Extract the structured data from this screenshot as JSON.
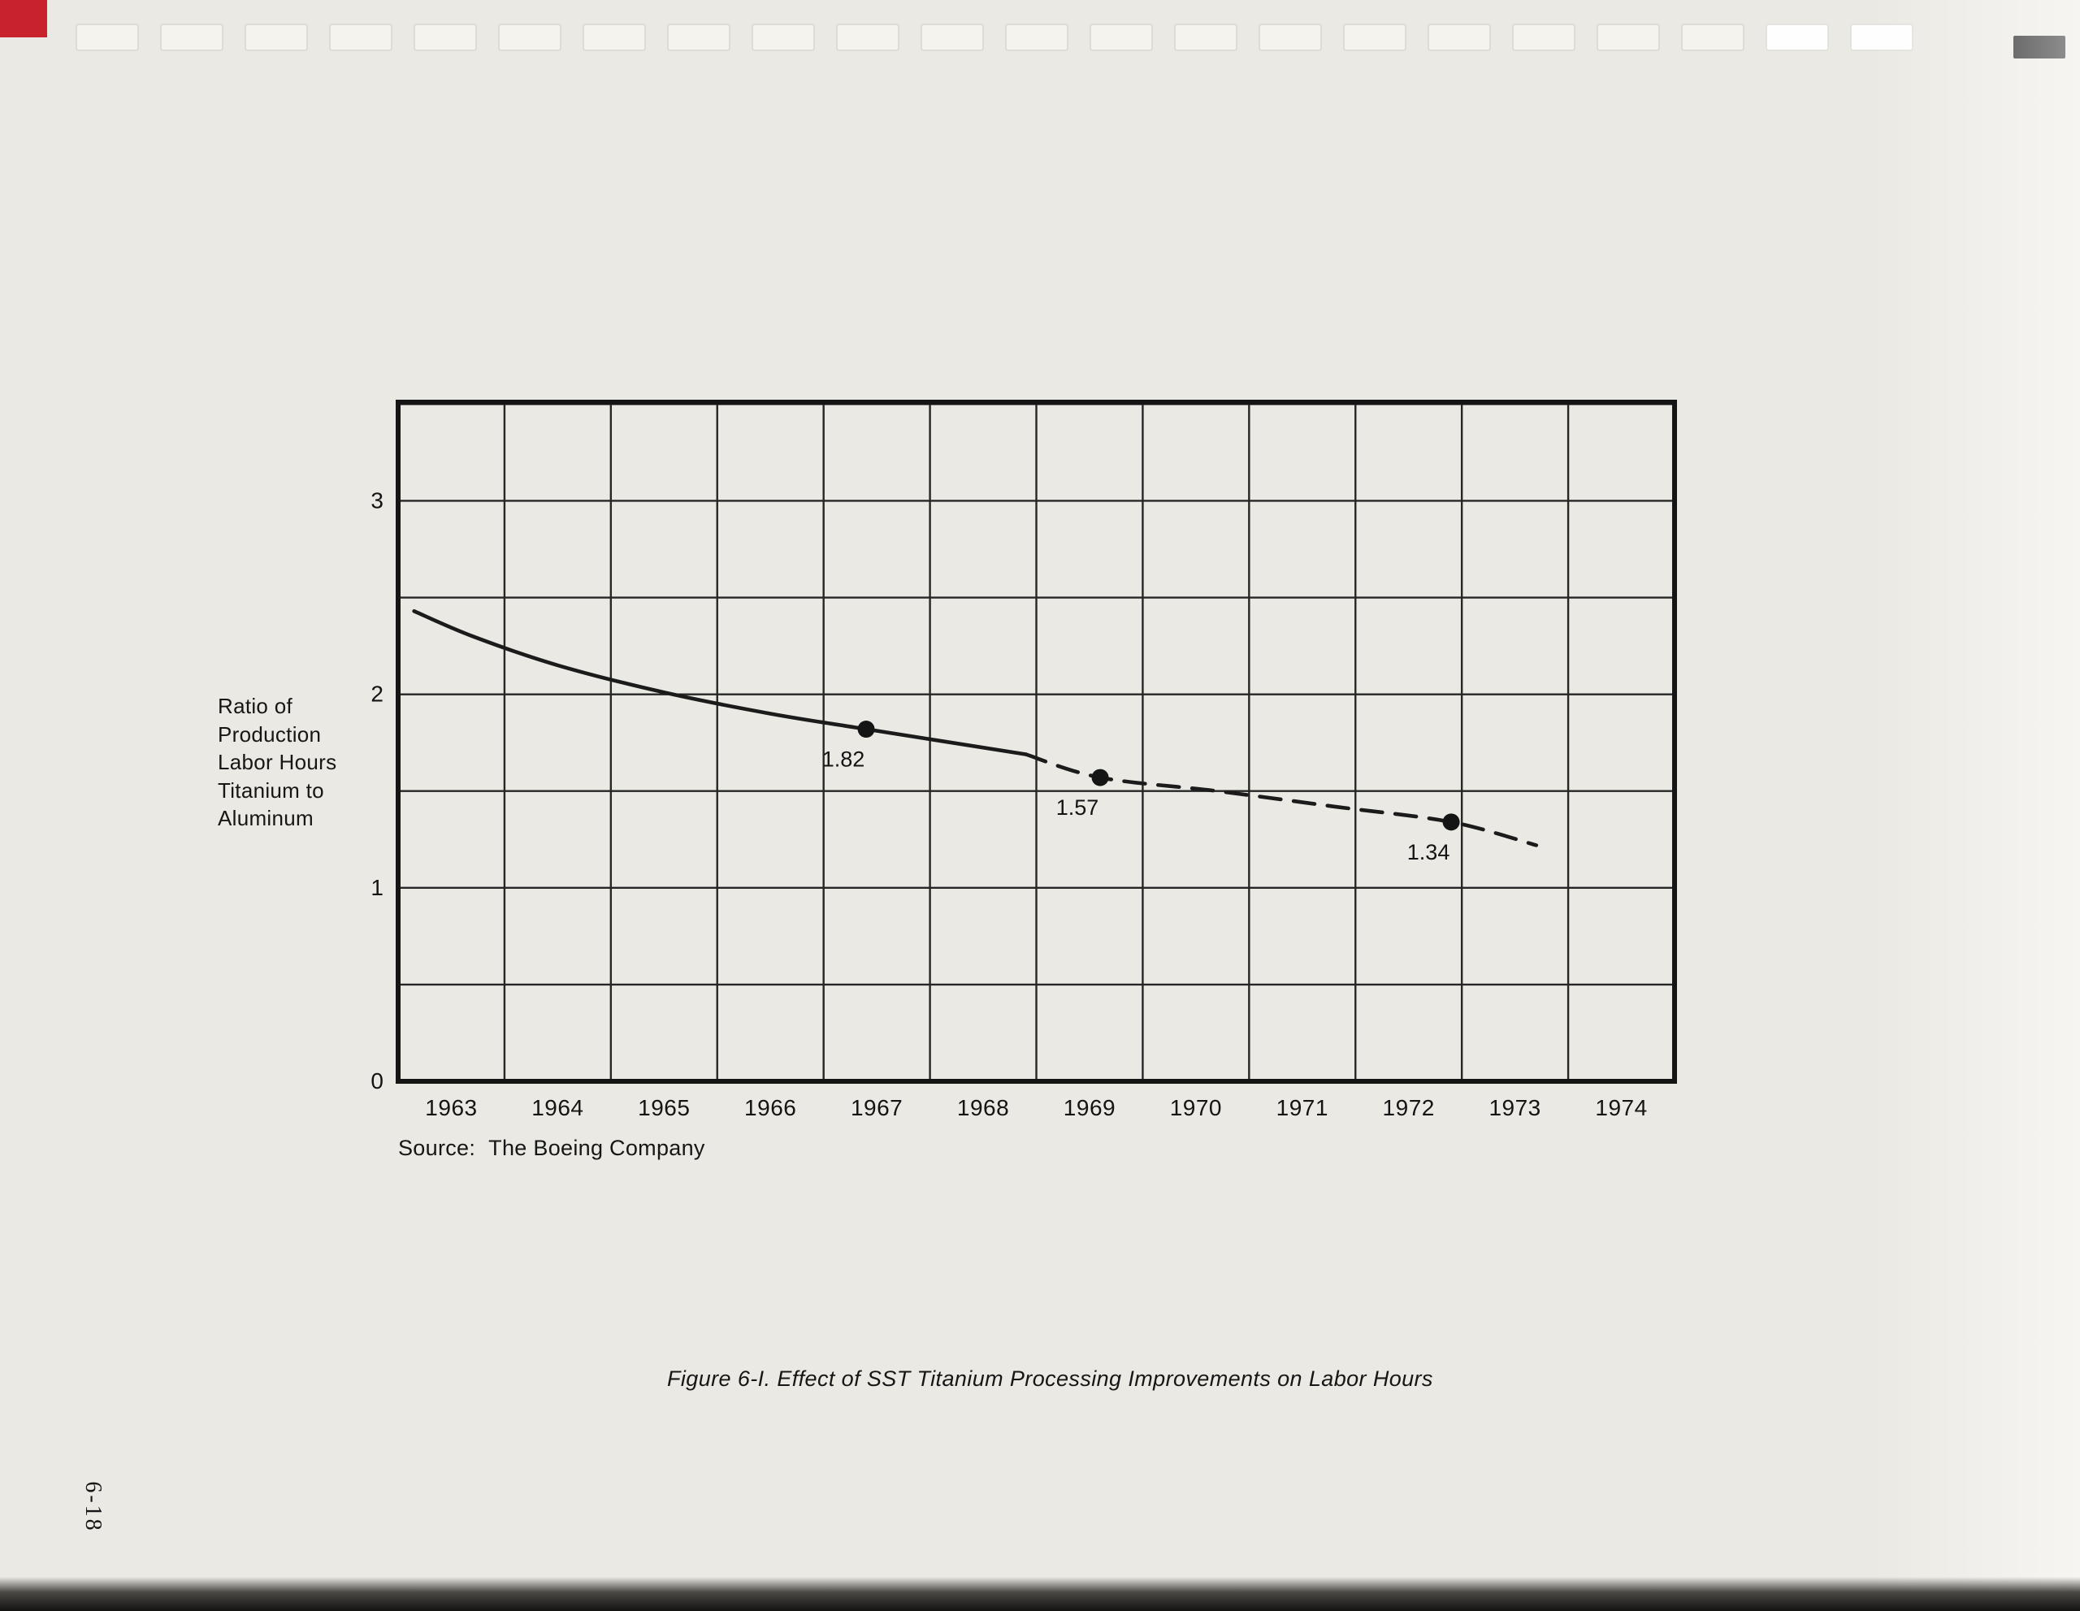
{
  "page": {
    "page_number": "6-18",
    "source_label": "Source:",
    "source_value": "The Boeing Company",
    "caption": "Figure  6-I.  Effect of SST Titanium Processing Improvements on Labor Hours"
  },
  "chart_data": {
    "type": "line",
    "title": "Effect of SST Titanium Processing Improvements on Labor Hours",
    "figure_label": "Figure 6-I.",
    "ylabel_lines": [
      "Ratio of",
      "Production",
      "Labor Hours",
      "Titanium to",
      "Aluminum"
    ],
    "x_ticks": [
      "1963",
      "1964",
      "1965",
      "1966",
      "1967",
      "1968",
      "1969",
      "1970",
      "1971",
      "1972",
      "1973",
      "1974"
    ],
    "y_ticks": [
      3,
      2,
      1,
      0
    ],
    "xlim": [
      1962.5,
      1974.5
    ],
    "ylim": [
      0,
      3.51
    ],
    "grid_step_y": 0.5,
    "grid": true,
    "legend": "none",
    "series": [
      {
        "name": "actual",
        "style": "solid",
        "points": [
          [
            1962.65,
            2.43
          ],
          [
            1963.2,
            2.3
          ],
          [
            1964.0,
            2.15
          ],
          [
            1965.0,
            2.01
          ],
          [
            1966.0,
            1.9
          ],
          [
            1966.9,
            1.82
          ],
          [
            1968.4,
            1.69
          ]
        ]
      },
      {
        "name": "projected",
        "style": "dashed",
        "points": [
          [
            1968.4,
            1.69
          ],
          [
            1969.1,
            1.57
          ],
          [
            1970.2,
            1.5
          ],
          [
            1971.3,
            1.42
          ],
          [
            1972.4,
            1.34
          ],
          [
            1973.2,
            1.22
          ]
        ]
      }
    ],
    "labeled_points": [
      {
        "x": 1966.9,
        "y": 1.82,
        "label": "1.82"
      },
      {
        "x": 1969.1,
        "y": 1.57,
        "label": "1.57"
      },
      {
        "x": 1972.4,
        "y": 1.34,
        "label": "1.34"
      }
    ],
    "source": "The Boeing Company"
  }
}
